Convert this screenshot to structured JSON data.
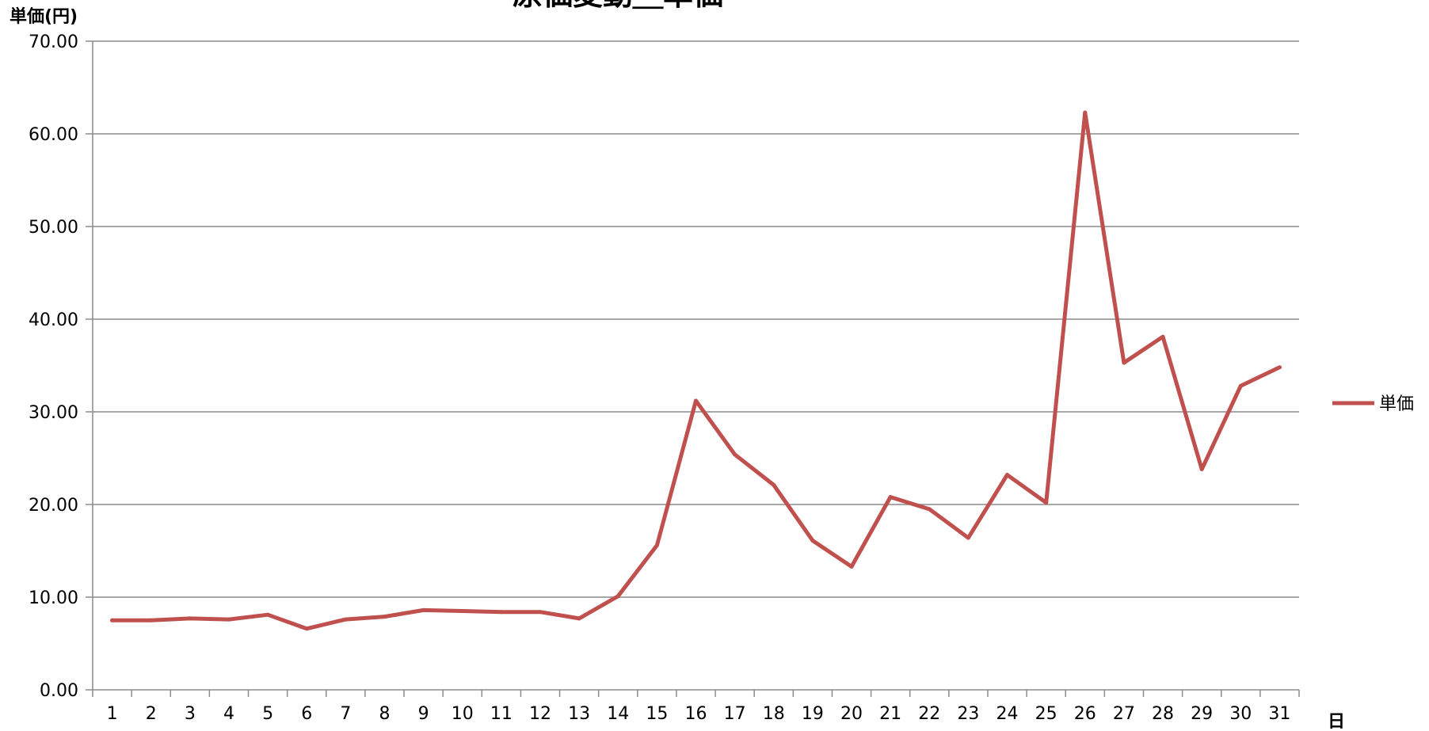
{
  "chart_data": {
    "type": "line",
    "title": "原価変動＿単価",
    "ylabel": "単価(円)",
    "xlabel": "日",
    "ylim": [
      0,
      70
    ],
    "y_ticks": [
      "0.00",
      "10.00",
      "20.00",
      "30.00",
      "40.00",
      "50.00",
      "60.00",
      "70.00"
    ],
    "categories": [
      "1",
      "2",
      "3",
      "4",
      "5",
      "6",
      "7",
      "8",
      "9",
      "10",
      "11",
      "12",
      "13",
      "14",
      "15",
      "16",
      "17",
      "18",
      "19",
      "20",
      "21",
      "22",
      "23",
      "24",
      "25",
      "26",
      "27",
      "28",
      "29",
      "30",
      "31"
    ],
    "series": [
      {
        "name": "単価",
        "color": "#c0504d",
        "values": [
          7.5,
          7.5,
          7.7,
          7.6,
          8.1,
          6.6,
          7.6,
          7.9,
          8.6,
          8.5,
          8.4,
          8.4,
          7.7,
          10.1,
          15.6,
          31.2,
          25.4,
          22.1,
          16.1,
          13.3,
          20.8,
          19.5,
          16.4,
          23.2,
          20.2,
          62.3,
          35.3,
          38.1,
          23.8,
          32.8,
          34.8
        ]
      }
    ],
    "grid": true,
    "legend": "right"
  }
}
